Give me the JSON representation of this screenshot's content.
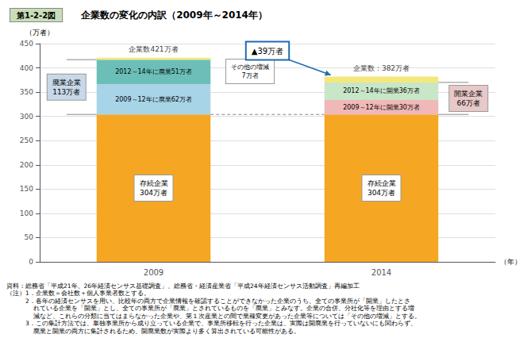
{
  "chart_data": {
    "type": "bar",
    "stacked": true,
    "title": "第1-2-2図",
    "subtitle": "　　企業数の変化の内訳（2009年～2014年）",
    "y_label": "（万者）",
    "x_label": "（年）",
    "categories": [
      "2009",
      "2014"
    ],
    "series": [
      {
        "name": "存続企業\n304万者",
        "color": "#F5A623",
        "values": [
          304,
          304
        ]
      },
      {
        "name": "2009～12年に廃業62万者",
        "color": "#A8D4E8",
        "values": [
          62,
          null
        ]
      },
      {
        "name": "2012～14年に廃業51万者",
        "color": "#6BBFB8",
        "values": [
          51,
          null
        ]
      },
      {
        "name": "2009～12年に開業30万者",
        "color": "#F0B8B8",
        "values": [
          null,
          30
        ]
      },
      {
        "name": "2012～14年に開業36万者",
        "color": "#C8E6C8",
        "values": [
          null,
          36
        ]
      },
      {
        "color": "#F5E87A",
        "values": [
          4,
          12
        ]
      }
    ],
    "totals": [
      421,
      382
    ],
    "total_labels": [
      "企業数421万者",
      "企業数：382万者"
    ],
    "ylim": [
      0,
      450
    ],
    "yticks": [
      0,
      50,
      100,
      150,
      200,
      250,
      300,
      350,
      400,
      450
    ],
    "grid": true,
    "annotations": [
      {
        "text": "▲39万者",
        "color": "#1F6BB0"
      },
      {
        "text": "廃業企業\n113万者",
        "color": "#C8D8E8"
      },
      {
        "text": "開業企業\n66万者",
        "color": "#E8C8C8"
      },
      {
        "text": "その他の増減\n7万者"
      }
    ],
    "footnotes": [
      "資料：総務省「平成21年、26年経済センサス基礎調査」、総務省・経済産業省「平成24年経済センサス活動調査」再編加工",
      "（注）1．企業数＝会社数＋個人事業者数とする。",
      "　　　2．各年の経済センサスを用い、比較年の両方で企業情報を確認することができなかった企業のうち、全ての事業所が「開業」したとさ",
      "　　　　 れている企業を「開業」とし、全ての事業所が「廃業」とされているものを「廃業」とみなす。企業の合併、分社化等を理由とする増",
      "　　　　 減など、これらの分類に当てはまらなかった企業や、第１次産業との間で業種変更があった企業等については「その他の増減」とする。",
      "　　　3．この集計方法では、単独事業所から成り立っている企業で、事業所移転を行った企業は、実際は開廃業を行っていないにも関わらず、",
      "　　　　 廃業と開業の両方に集計されるため、開廃業数が実際より多く算出されている可能性がある。"
    ]
  }
}
